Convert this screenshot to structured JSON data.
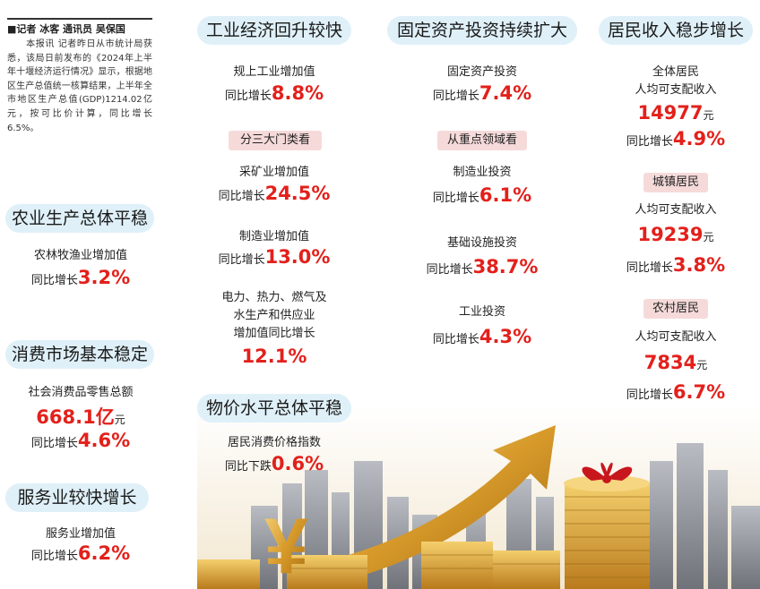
{
  "byline": "■记者 冰客 通讯员 吴保国",
  "intro": "　　本报讯 记者昨日从市统计局获悉，该局日前发布的《2024年上半年十堰经济运行情况》显示，根据地区生产总值统一核算结果，上半年全市地区生产总值(GDP)1214.02亿元，按可比价计算，同比增长6.5%。",
  "agri": {
    "heading": "农业生产总体平稳",
    "label": "农林牧渔业增加值",
    "prefix": "同比增长",
    "value": "3.2%"
  },
  "consumer": {
    "heading": "消费市场基本稳定",
    "label": "社会消费品零售总额",
    "amount": "668.1亿",
    "unit": "元",
    "prefix": "同比增长",
    "value": "4.6%"
  },
  "services": {
    "heading": "服务业较快增长",
    "label": "服务业增加值",
    "prefix": "同比增长",
    "value": "6.2%"
  },
  "industry": {
    "heading": "工业经济回升较快",
    "label": "规上工业增加值",
    "prefix": "同比增长",
    "value": "8.8%",
    "tag": "分三大门类看",
    "mining": {
      "label": "采矿业增加值",
      "prefix": "同比增长",
      "value": "24.5%"
    },
    "manufacturing": {
      "label": "制造业增加值",
      "prefix": "同比增长",
      "value": "13.0%"
    },
    "utilities": {
      "line1": "电力、热力、燃气及",
      "line2": "水生产和供应业",
      "line3": "增加值同比增长",
      "value": "12.1%"
    }
  },
  "prices": {
    "heading": "物价水平总体平稳",
    "label": "居民消费价格指数",
    "prefix": "同比下跌",
    "value": "0.6%"
  },
  "investment": {
    "heading": "固定资产投资持续扩大",
    "label": "固定资产投资",
    "prefix": "同比增长",
    "value": "7.4%",
    "tag": "从重点领域看",
    "manufacturing": {
      "label": "制造业投资",
      "prefix": "同比增长",
      "value": "6.1%"
    },
    "infrastructure": {
      "label": "基础设施投资",
      "prefix": "同比增长",
      "value": "38.7%"
    },
    "industrial": {
      "label": "工业投资",
      "prefix": "同比增长",
      "value": "4.3%"
    }
  },
  "income": {
    "heading": "居民收入稳步增长",
    "all": {
      "line1": "全体居民",
      "line2": "人均可支配收入",
      "amount": "14977",
      "unit": "元",
      "prefix": "同比增长",
      "value": "4.9%"
    },
    "urban": {
      "tag": "城镇居民",
      "label": "人均可支配收入",
      "amount": "19239",
      "unit": "元",
      "prefix": "同比增长",
      "value": "3.8%"
    },
    "rural": {
      "tag": "农村居民",
      "label": "人均可支配收入",
      "amount": "7834",
      "unit": "元",
      "prefix": "同比增长",
      "value": "6.7%"
    }
  },
  "illustration": {
    "yuan_symbol": "¥"
  }
}
